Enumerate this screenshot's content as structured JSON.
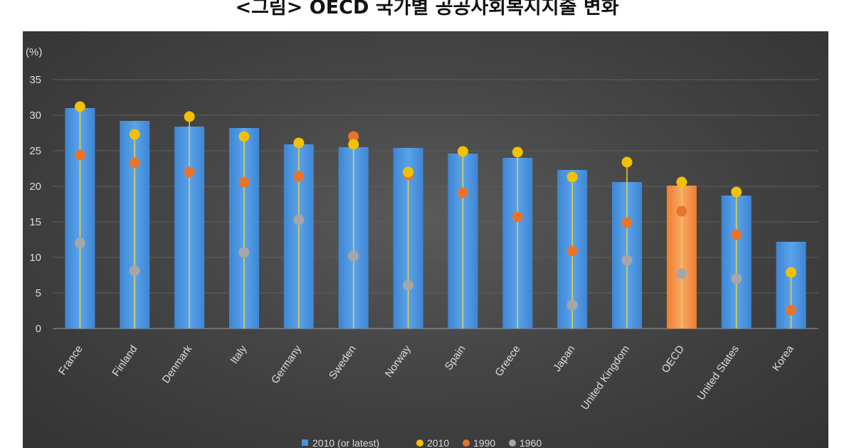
{
  "title": "<그림> OECD 국가별 공공사회복지지출 변화",
  "colors": {
    "bar": "#4a90d9",
    "bar_highlight": "#f0883a",
    "y2010": "#f2c200",
    "y1990": "#e8742c",
    "y1960": "#a6a6a6",
    "stem": "#e6d23a"
  },
  "chart_data": {
    "type": "bar",
    "ylabel": "(%)",
    "ylim": [
      0,
      35
    ],
    "yticks": [
      0,
      5,
      10,
      15,
      20,
      25,
      30,
      35
    ],
    "grid": true,
    "legend_position": "bottom",
    "highlight_category": "OECD",
    "categories": [
      "France",
      "Finland",
      "Denmark",
      "Italy",
      "Germany",
      "Sweden",
      "Norway",
      "Spain",
      "Greece",
      "Japan",
      "United Kingdom",
      "OECD",
      "United States",
      "Korea"
    ],
    "series": [
      {
        "name": "2010 (or latest)",
        "kind": "bar",
        "values": [
          31.0,
          29.2,
          28.4,
          28.2,
          25.9,
          25.5,
          25.4,
          24.6,
          24.0,
          22.3,
          20.6,
          20.1,
          18.7,
          12.2
        ]
      },
      {
        "name": "2010",
        "kind": "point",
        "values": [
          31.2,
          27.3,
          29.8,
          27.0,
          26.1,
          25.9,
          22.0,
          24.9,
          24.8,
          21.3,
          23.4,
          20.6,
          19.2,
          7.9
        ]
      },
      {
        "name": "1990",
        "kind": "point",
        "values": [
          24.4,
          23.3,
          22.0,
          20.6,
          21.4,
          27.0,
          21.6,
          19.1,
          15.7,
          10.9,
          14.9,
          16.5,
          13.2,
          2.6
        ]
      },
      {
        "name": "1960",
        "kind": "point",
        "values": [
          12.0,
          8.1,
          null,
          10.7,
          15.3,
          10.2,
          6.1,
          null,
          null,
          3.3,
          9.6,
          7.7,
          7.0,
          null
        ]
      }
    ]
  }
}
